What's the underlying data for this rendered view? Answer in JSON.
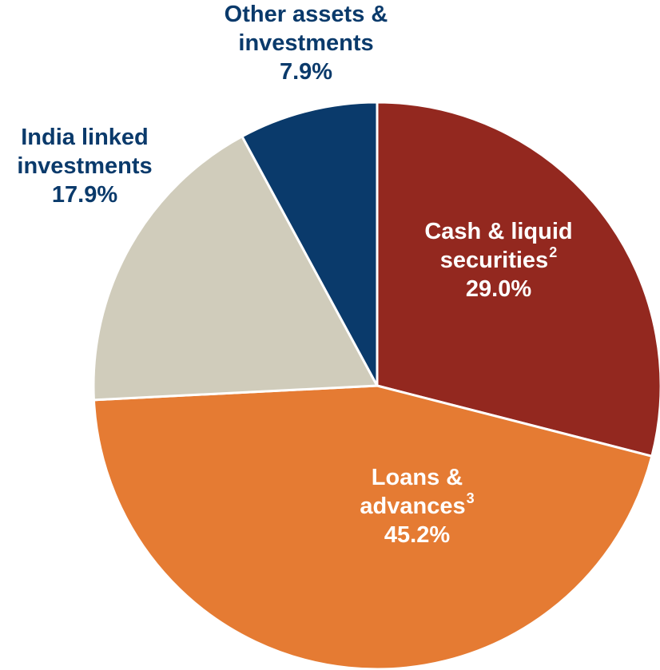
{
  "chart_data": {
    "type": "pie",
    "start_angle": 0,
    "direction": "clockwise",
    "slices": [
      {
        "name": "Cash & liquid securities",
        "line1": "Cash & liquid",
        "line2": "securities",
        "note": "2",
        "value": 29.0,
        "display": "29.0%",
        "color": "#93281f"
      },
      {
        "name": "Loans & advances",
        "line1": "Loans &",
        "line2": "advances",
        "note": "3",
        "value": 45.2,
        "display": "45.2%",
        "color": "#e57b33"
      },
      {
        "name": "India linked investments",
        "line1": "India linked",
        "line2": "investments",
        "note": "",
        "value": 17.9,
        "display": "17.9%",
        "color": "#d0ccbb"
      },
      {
        "name": "Other assets & investments",
        "line1": "Other assets &",
        "line2": "investments",
        "note": "",
        "value": 7.9,
        "display": "7.9%",
        "color": "#0a3a6b"
      }
    ]
  }
}
